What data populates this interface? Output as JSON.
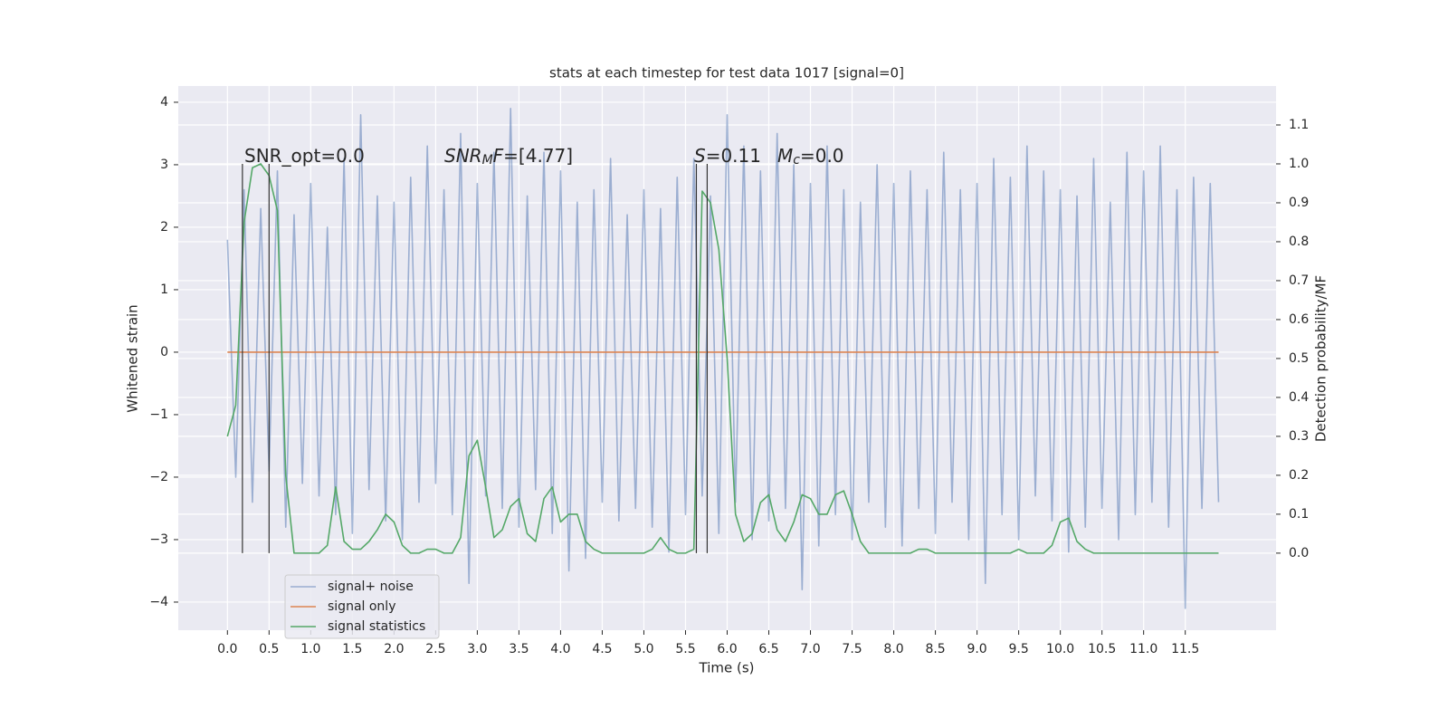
{
  "chart_data": {
    "type": "line",
    "title": "stats at each timestep for test data 1017 [signal=0]",
    "x_label": "Time (s)",
    "y_label": "Whitened strain",
    "y2_label": "Detection probability/MF",
    "x": [
      0,
      0.1,
      0.2,
      0.3,
      0.4,
      0.5,
      0.6,
      0.7,
      0.8,
      0.9,
      1,
      1.1,
      1.2,
      1.3,
      1.4,
      1.5,
      1.6,
      1.7,
      1.8,
      1.9,
      2,
      2.1,
      2.2,
      2.3,
      2.4,
      2.5,
      2.6,
      2.7,
      2.8,
      2.9,
      3,
      3.1,
      3.2,
      3.3,
      3.4,
      3.5,
      3.6,
      3.7,
      3.8,
      3.9,
      4,
      4.1,
      4.2,
      4.3,
      4.4,
      4.5,
      4.6,
      4.7,
      4.8,
      4.9,
      5,
      5.1,
      5.2,
      5.3,
      5.4,
      5.5,
      5.6,
      5.7,
      5.8,
      5.9,
      6,
      6.1,
      6.2,
      6.3,
      6.4,
      6.5,
      6.6,
      6.7,
      6.8,
      6.9,
      7,
      7.1,
      7.2,
      7.3,
      7.4,
      7.5,
      7.6,
      7.7,
      7.8,
      7.9,
      8,
      8.1,
      8.2,
      8.3,
      8.4,
      8.5,
      8.6,
      8.7,
      8.8,
      8.9,
      9,
      9.1,
      9.2,
      9.3,
      9.4,
      9.5,
      9.6,
      9.7,
      9.8,
      9.9,
      10,
      10.1,
      10.2,
      10.3,
      10.4,
      10.5,
      10.6,
      10.7,
      10.8,
      10.9,
      11,
      11.1,
      11.2,
      11.3,
      11.4,
      11.5,
      11.6,
      11.7,
      11.8,
      11.9
    ],
    "series": [
      {
        "name": "signal+ noise",
        "color": "#4c72b0",
        "opacity": 0.5,
        "axis": "y",
        "values": [
          1.8,
          -2.0,
          2.6,
          -2.4,
          2.3,
          -1.9,
          2.9,
          -2.8,
          2.2,
          -2.1,
          2.7,
          -2.3,
          2.0,
          -2.6,
          3.1,
          -2.9,
          3.8,
          -2.2,
          2.5,
          -2.7,
          2.4,
          -3.0,
          2.8,
          -2.4,
          3.3,
          -2.1,
          2.6,
          -2.6,
          3.5,
          -3.7,
          2.7,
          -2.3,
          3.2,
          -2.5,
          3.9,
          -2.8,
          2.5,
          -2.2,
          3.2,
          -2.9,
          2.9,
          -3.5,
          2.4,
          -3.3,
          2.6,
          -2.4,
          3.1,
          -2.7,
          2.2,
          -2.5,
          2.6,
          -2.8,
          2.3,
          -3.2,
          2.8,
          -2.6,
          3.1,
          -2.3,
          2.5,
          -2.9,
          3.8,
          -2.4,
          3.3,
          -3.0,
          2.9,
          -2.7,
          3.5,
          -2.5,
          3.0,
          -3.8,
          2.7,
          -3.1,
          3.3,
          -2.6,
          2.6,
          -3.0,
          2.4,
          -2.4,
          3.0,
          -2.8,
          2.7,
          -3.1,
          2.9,
          -2.5,
          2.6,
          -2.9,
          3.2,
          -2.4,
          2.6,
          -3.0,
          2.7,
          -3.7,
          3.1,
          -2.6,
          2.8,
          -3.0,
          3.3,
          -2.3,
          2.9,
          -2.7,
          2.6,
          -3.2,
          2.5,
          -2.8,
          3.1,
          -2.5,
          2.4,
          -3.0,
          3.2,
          -2.6,
          2.9,
          -2.4,
          3.3,
          -2.8,
          2.6,
          -4.1,
          2.8,
          -2.5,
          2.7,
          -2.4
        ]
      },
      {
        "name": "signal only",
        "color": "#dd8452",
        "opacity": 1,
        "axis": "y",
        "values": [
          0,
          0,
          0,
          0,
          0,
          0,
          0,
          0,
          0,
          0,
          0,
          0,
          0,
          0,
          0,
          0,
          0,
          0,
          0,
          0,
          0,
          0,
          0,
          0,
          0,
          0,
          0,
          0,
          0,
          0,
          0,
          0,
          0,
          0,
          0,
          0,
          0,
          0,
          0,
          0,
          0,
          0,
          0,
          0,
          0,
          0,
          0,
          0,
          0,
          0,
          0,
          0,
          0,
          0,
          0,
          0,
          0,
          0,
          0,
          0,
          0,
          0,
          0,
          0,
          0,
          0,
          0,
          0,
          0,
          0,
          0,
          0,
          0,
          0,
          0,
          0,
          0,
          0,
          0,
          0,
          0,
          0,
          0,
          0,
          0,
          0,
          0,
          0,
          0,
          0,
          0,
          0,
          0,
          0,
          0,
          0,
          0,
          0,
          0,
          0,
          0,
          0,
          0,
          0,
          0,
          0,
          0,
          0,
          0,
          0,
          0,
          0,
          0,
          0,
          0,
          0,
          0,
          0,
          0,
          0
        ]
      },
      {
        "name": "signal statistics",
        "color": "#55a868",
        "opacity": 1,
        "axis": "y2",
        "values": [
          0.3,
          0.38,
          0.85,
          0.99,
          1.0,
          0.97,
          0.88,
          0.2,
          0.0,
          0.0,
          0.0,
          0.0,
          0.02,
          0.17,
          0.03,
          0.01,
          0.01,
          0.03,
          0.06,
          0.1,
          0.08,
          0.02,
          0.0,
          0.0,
          0.01,
          0.01,
          0.0,
          0.0,
          0.04,
          0.25,
          0.29,
          0.17,
          0.04,
          0.06,
          0.12,
          0.14,
          0.05,
          0.03,
          0.14,
          0.17,
          0.08,
          0.1,
          0.1,
          0.03,
          0.01,
          0.0,
          0.0,
          0.0,
          0.0,
          0.0,
          0.0,
          0.01,
          0.04,
          0.01,
          0.0,
          0.0,
          0.01,
          0.93,
          0.9,
          0.78,
          0.5,
          0.1,
          0.03,
          0.05,
          0.13,
          0.15,
          0.06,
          0.03,
          0.08,
          0.15,
          0.14,
          0.1,
          0.1,
          0.15,
          0.16,
          0.1,
          0.03,
          0.0,
          0.0,
          0.0,
          0.0,
          0.0,
          0.0,
          0.01,
          0.01,
          0.0,
          0.0,
          0.0,
          0.0,
          0.0,
          0.0,
          0.0,
          0.0,
          0.0,
          0.0,
          0.01,
          0.0,
          0.0,
          0.0,
          0.02,
          0.08,
          0.09,
          0.03,
          0.01,
          0.0,
          0.0,
          0.0,
          0.0,
          0.0,
          0.0,
          0.0,
          0.0,
          0.0,
          0.0,
          0.0,
          0.0,
          0.0,
          0.0,
          0.0,
          0.0
        ]
      }
    ],
    "vlines": [
      0.18,
      0.5,
      5.63,
      5.76
    ],
    "vline_range": [
      0,
      1.0
    ],
    "vline_color": "#333333",
    "annotations": [
      {
        "parts": [
          {
            "text": "SNR_opt=0.0"
          }
        ]
      },
      {
        "parts": [
          {
            "text": "SNR",
            "italic": true
          },
          {
            "text": "M",
            "italic": true,
            "sub": true
          },
          {
            "text": "F",
            "italic": true
          },
          {
            "text": "=[4.77]"
          }
        ]
      },
      {
        "parts": [
          {
            "text": "S",
            "italic": true
          },
          {
            "text": "=0.11"
          }
        ]
      },
      {
        "parts": [
          {
            "text": "M",
            "italic": true
          },
          {
            "text": "c",
            "italic": true,
            "sub": true
          },
          {
            "text": "=0.0"
          }
        ]
      }
    ],
    "xlim": [
      -0.59,
      12.59
    ],
    "ylim": [
      -4.45,
      4.26
    ],
    "y2lim": [
      -0.198,
      1.2
    ],
    "xticks": [
      {
        "value": 0,
        "label": "0.0"
      },
      0.5,
      {
        "value": 1,
        "label": "1.0"
      },
      1.5,
      {
        "value": 2,
        "label": "2.0"
      },
      2.5,
      {
        "value": 3,
        "label": "3.0"
      },
      3.5,
      {
        "value": 4,
        "label": "4.0"
      },
      4.5,
      {
        "value": 5,
        "label": "5.0"
      },
      5.5,
      {
        "value": 6,
        "label": "6.0"
      },
      6.5,
      {
        "value": 7,
        "label": "7.0"
      },
      7.5,
      {
        "value": 8,
        "label": "8.0"
      },
      8.5,
      {
        "value": 9,
        "label": "9.0"
      },
      9.5,
      {
        "value": 10,
        "label": "10.0"
      },
      10.5,
      {
        "value": 11,
        "label": "11.0"
      },
      11.5
    ],
    "yticks": [
      {
        "value": -4,
        "label": "−4"
      },
      {
        "value": -3,
        "label": "−3"
      },
      {
        "value": -2,
        "label": "−2"
      },
      {
        "value": -1,
        "label": "−1"
      },
      0,
      1,
      2,
      3,
      4
    ],
    "y2ticks": [
      {
        "value": 0,
        "label": "0.0"
      },
      0.1,
      0.2,
      0.3,
      0.4,
      0.5,
      0.6,
      0.7,
      0.8,
      0.9,
      {
        "value": 1,
        "label": "1.0"
      },
      1.1
    ],
    "grid": true,
    "legend": "lower left",
    "background": "#eaeaf2"
  }
}
